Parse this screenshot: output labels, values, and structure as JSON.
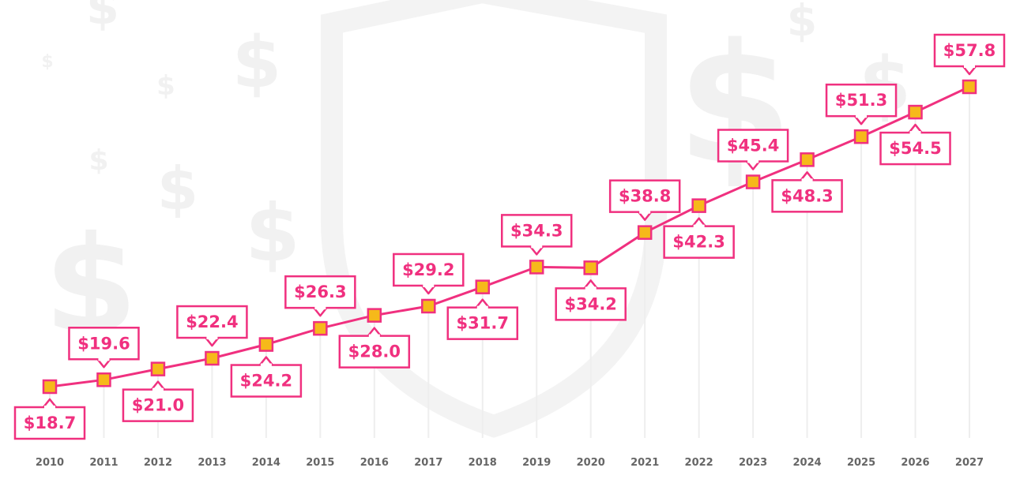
{
  "chart_data": {
    "type": "line",
    "title": "",
    "xlabel": "",
    "ylabel": "",
    "categories": [
      "2010",
      "2011",
      "2012",
      "2013",
      "2014",
      "2015",
      "2016",
      "2017",
      "2018",
      "2019",
      "2020",
      "2021",
      "2022",
      "2023",
      "2024",
      "2025",
      "2026",
      "2027"
    ],
    "series": [
      {
        "values": [
          18.7,
          19.6,
          21.0,
          22.4,
          24.2,
          26.3,
          28.0,
          29.2,
          31.7,
          34.3,
          34.2,
          38.8,
          42.3,
          45.4,
          48.3,
          51.3,
          54.5,
          57.8
        ],
        "data_labels": [
          "$18.7",
          "$19.6",
          "$21.0",
          "$22.4",
          "$24.2",
          "$26.3",
          "$28.0",
          "$29.2",
          "$31.7",
          "$34.3",
          "$34.2",
          "$38.8",
          "$42.3",
          "$45.4",
          "$48.3",
          "$51.3",
          "$54.5",
          "$57.8"
        ],
        "label_positions": [
          "below",
          "above",
          "below",
          "above",
          "below",
          "above",
          "below",
          "above",
          "below",
          "above",
          "below",
          "above",
          "below",
          "above",
          "below",
          "above",
          "below",
          "above"
        ]
      }
    ],
    "ylim": [
      15,
      60
    ],
    "grid": false,
    "legend": "none",
    "colors": {
      "line": "#f0307f",
      "marker_fill": "#f6b91a",
      "label_text": "#f0307f",
      "tick_text": "#666666"
    }
  }
}
